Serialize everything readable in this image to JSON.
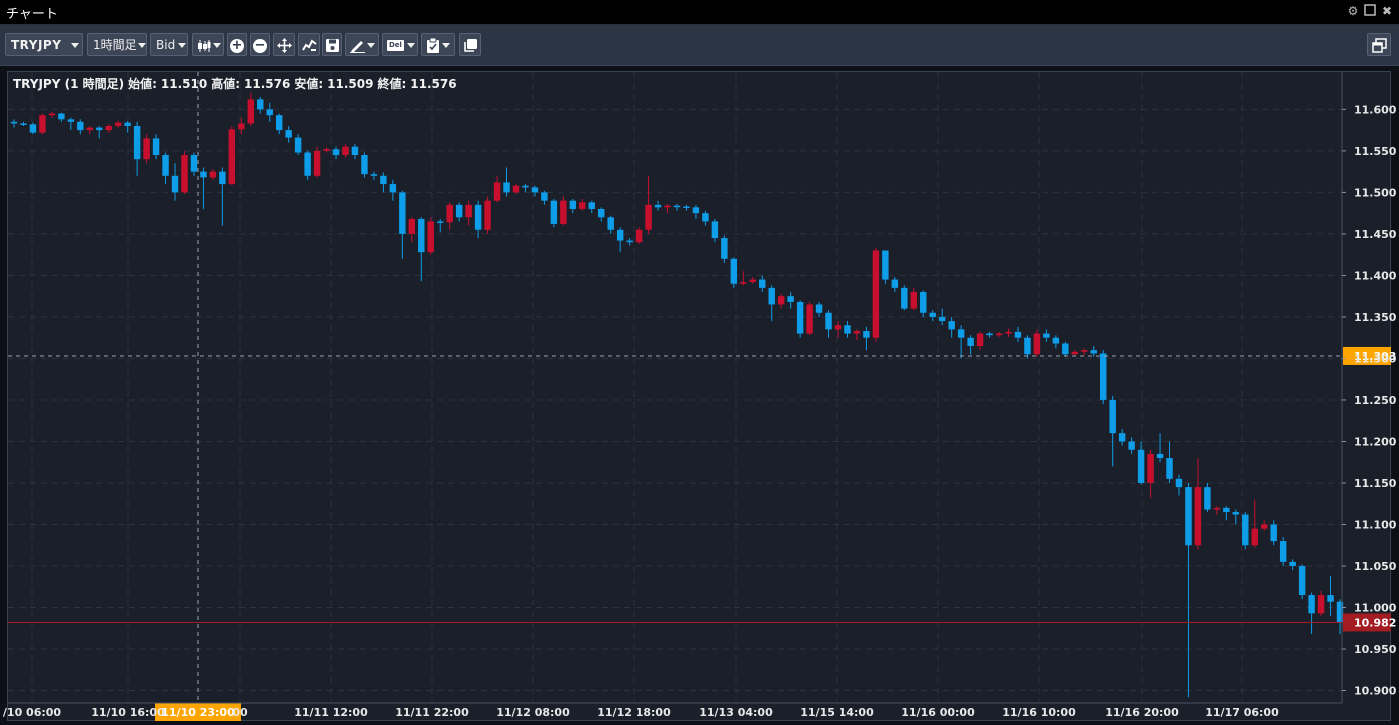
{
  "window": {
    "title": "チャート",
    "icons": [
      "gear-icon",
      "maximize-icon",
      "close-icon"
    ]
  },
  "toolbar": {
    "symbol": "TRYJPY",
    "timeframe": "1時間足",
    "price_type": "Bid",
    "icons": [
      "candlestick-icon",
      "zoom-in-icon",
      "zoom-out-icon",
      "move-icon",
      "indicator-icon",
      "save-icon",
      "draw-icon",
      "delete-icon",
      "clipboard-icon",
      "copy-icon",
      "new-window-icon"
    ],
    "delete_label": "Del"
  },
  "ohlc": {
    "symbol_label": "TRYJPY (1 時間足)",
    "open_label": "始値:",
    "open": "11.510",
    "high_label": "高値:",
    "high": "11.576",
    "low_label": "安値:",
    "low": "11.509",
    "close_label": "終値:",
    "close": "11.576"
  },
  "colors": {
    "up": "#c8102e",
    "down": "#0e9de8",
    "current_badge": "#a21c22",
    "cursor_badge": "#ffa500",
    "background": "#1a1f29"
  },
  "chart_data": {
    "type": "candlestick",
    "ylim": [
      10.885,
      11.645
    ],
    "y_ticks": [
      "11.600",
      "11.550",
      "11.500",
      "11.450",
      "11.400",
      "11.350",
      "11.300",
      "11.250",
      "11.200",
      "11.150",
      "11.100",
      "11.050",
      "11.000",
      "10.950",
      "10.900"
    ],
    "x_tick_labels": [
      "/10 06:00",
      "11/10 16:00",
      "00",
      "11/11 12:00",
      "11/11 22:00",
      "11/12 08:00",
      "11/12 18:00",
      "11/13 04:00",
      "11/15 14:00",
      "11/16 00:00",
      "11/16 10:00",
      "11/16 20:00",
      "11/17 06:00"
    ],
    "crosshair": {
      "x_label": "11/10 23:00",
      "y_label": "11.303",
      "y": 11.303
    },
    "current_price": {
      "label": "10.982",
      "y": 10.982
    },
    "candles": [
      [
        11.585,
        11.583,
        11.588,
        11.578
      ],
      [
        11.583,
        11.582,
        11.585,
        11.58
      ],
      [
        11.582,
        11.572,
        11.584,
        11.57
      ],
      [
        11.572,
        11.593,
        11.595,
        11.57
      ],
      [
        11.593,
        11.595,
        11.597,
        11.59
      ],
      [
        11.595,
        11.588,
        11.596,
        11.585
      ],
      [
        11.588,
        11.585,
        11.59,
        11.575
      ],
      [
        11.585,
        11.575,
        11.588,
        11.57
      ],
      [
        11.575,
        11.578,
        11.58,
        11.57
      ],
      [
        11.578,
        11.575,
        11.58,
        11.565
      ],
      [
        11.575,
        11.58,
        11.582,
        11.572
      ],
      [
        11.58,
        11.584,
        11.586,
        11.578
      ],
      [
        11.584,
        11.58,
        11.586,
        11.572
      ],
      [
        11.58,
        11.54,
        11.585,
        11.52
      ],
      [
        11.54,
        11.565,
        11.57,
        11.535
      ],
      [
        11.565,
        11.545,
        11.57,
        11.54
      ],
      [
        11.545,
        11.52,
        11.548,
        11.51
      ],
      [
        11.52,
        11.5,
        11.535,
        11.49
      ],
      [
        11.5,
        11.545,
        11.55,
        11.498
      ],
      [
        11.545,
        11.525,
        11.548,
        11.52
      ],
      [
        11.525,
        11.518,
        11.53,
        11.48
      ],
      [
        11.518,
        11.525,
        11.528,
        11.515
      ],
      [
        11.525,
        11.51,
        11.53,
        11.46
      ],
      [
        11.51,
        11.576,
        11.58,
        11.509
      ],
      [
        11.576,
        11.583,
        11.59,
        11.57
      ],
      [
        11.583,
        11.612,
        11.62,
        11.58
      ],
      [
        11.612,
        11.6,
        11.615,
        11.595
      ],
      [
        11.6,
        11.593,
        11.608,
        11.585
      ],
      [
        11.593,
        11.575,
        11.595,
        11.57
      ],
      [
        11.575,
        11.566,
        11.58,
        11.56
      ],
      [
        11.566,
        11.548,
        11.57,
        11.545
      ],
      [
        11.548,
        11.52,
        11.55,
        11.515
      ],
      [
        11.52,
        11.55,
        11.555,
        11.518
      ],
      [
        11.55,
        11.552,
        11.554,
        11.548
      ],
      [
        11.552,
        11.545,
        11.555,
        11.54
      ],
      [
        11.545,
        11.555,
        11.558,
        11.542
      ],
      [
        11.555,
        11.545,
        11.558,
        11.54
      ],
      [
        11.545,
        11.522,
        11.548,
        11.518
      ],
      [
        11.522,
        11.52,
        11.525,
        11.515
      ],
      [
        11.52,
        11.51,
        11.524,
        11.5
      ],
      [
        11.51,
        11.5,
        11.515,
        11.49
      ],
      [
        11.5,
        11.45,
        11.502,
        11.42
      ],
      [
        11.45,
        11.468,
        11.47,
        11.44
      ],
      [
        11.468,
        11.428,
        11.47,
        11.393
      ],
      [
        11.428,
        11.465,
        11.47,
        11.425
      ],
      [
        11.465,
        11.464,
        11.468,
        11.452
      ],
      [
        11.464,
        11.485,
        11.488,
        11.455
      ],
      [
        11.485,
        11.47,
        11.488,
        11.465
      ],
      [
        11.47,
        11.485,
        11.49,
        11.46
      ],
      [
        11.485,
        11.455,
        11.49,
        11.445
      ],
      [
        11.455,
        11.49,
        11.495,
        11.45
      ],
      [
        11.49,
        11.512,
        11.52,
        11.488
      ],
      [
        11.512,
        11.5,
        11.53,
        11.495
      ],
      [
        11.5,
        11.508,
        11.51,
        11.498
      ],
      [
        11.508,
        11.506,
        11.51,
        11.5
      ],
      [
        11.506,
        11.5,
        11.508,
        11.495
      ],
      [
        11.5,
        11.49,
        11.502,
        11.485
      ],
      [
        11.49,
        11.462,
        11.492,
        11.458
      ],
      [
        11.462,
        11.49,
        11.495,
        11.46
      ],
      [
        11.49,
        11.48,
        11.492,
        11.475
      ],
      [
        11.48,
        11.488,
        11.492,
        11.478
      ],
      [
        11.488,
        11.48,
        11.49,
        11.475
      ],
      [
        11.48,
        11.47,
        11.482,
        11.465
      ],
      [
        11.47,
        11.455,
        11.472,
        11.45
      ],
      [
        11.455,
        11.442,
        11.458,
        11.428
      ],
      [
        11.442,
        11.44,
        11.445,
        11.436
      ],
      [
        11.44,
        11.455,
        11.458,
        11.438
      ],
      [
        11.455,
        11.485,
        11.52,
        11.45
      ],
      [
        11.485,
        11.482,
        11.49,
        11.478
      ],
      [
        11.482,
        11.484,
        11.486,
        11.475
      ],
      [
        11.484,
        11.483,
        11.486,
        11.478
      ],
      [
        11.483,
        11.482,
        11.485,
        11.478
      ],
      [
        11.482,
        11.475,
        11.485,
        11.468
      ],
      [
        11.475,
        11.465,
        11.478,
        11.46
      ],
      [
        11.465,
        11.445,
        11.468,
        11.44
      ],
      [
        11.445,
        11.42,
        11.448,
        11.415
      ],
      [
        11.42,
        11.39,
        11.422,
        11.385
      ],
      [
        11.39,
        11.392,
        11.405,
        11.388
      ],
      [
        11.392,
        11.395,
        11.398,
        11.39
      ],
      [
        11.395,
        11.385,
        11.4,
        11.38
      ],
      [
        11.385,
        11.365,
        11.388,
        11.345
      ],
      [
        11.365,
        11.375,
        11.378,
        11.36
      ],
      [
        11.375,
        11.368,
        11.38,
        11.36
      ],
      [
        11.368,
        11.33,
        11.37,
        11.325
      ],
      [
        11.33,
        11.365,
        11.368,
        11.328
      ],
      [
        11.365,
        11.355,
        11.368,
        11.35
      ],
      [
        11.355,
        11.335,
        11.358,
        11.325
      ],
      [
        11.335,
        11.34,
        11.345,
        11.325
      ],
      [
        11.34,
        11.33,
        11.345,
        11.325
      ],
      [
        11.33,
        11.333,
        11.335,
        11.322
      ],
      [
        11.333,
        11.325,
        11.338,
        11.31
      ],
      [
        11.325,
        11.43,
        11.433,
        11.32
      ],
      [
        11.43,
        11.395,
        11.43,
        11.39
      ],
      [
        11.395,
        11.385,
        11.398,
        11.38
      ],
      [
        11.385,
        11.36,
        11.388,
        11.358
      ],
      [
        11.36,
        11.38,
        11.385,
        11.358
      ],
      [
        11.38,
        11.355,
        11.382,
        11.35
      ],
      [
        11.355,
        11.35,
        11.358,
        11.345
      ],
      [
        11.35,
        11.345,
        11.36,
        11.34
      ],
      [
        11.345,
        11.335,
        11.35,
        11.325
      ],
      [
        11.335,
        11.325,
        11.34,
        11.3
      ],
      [
        11.325,
        11.315,
        11.328,
        11.305
      ],
      [
        11.315,
        11.33,
        11.332,
        11.31
      ],
      [
        11.33,
        11.328,
        11.332,
        11.325
      ],
      [
        11.328,
        11.33,
        11.332,
        11.326
      ],
      [
        11.33,
        11.332,
        11.336,
        11.326
      ],
      [
        11.332,
        11.325,
        11.338,
        11.32
      ],
      [
        11.325,
        11.305,
        11.328,
        11.3
      ],
      [
        11.305,
        11.33,
        11.335,
        11.302
      ],
      [
        11.33,
        11.325,
        11.335,
        11.32
      ],
      [
        11.325,
        11.318,
        11.328,
        11.312
      ],
      [
        11.318,
        11.305,
        11.32,
        11.302
      ],
      [
        11.305,
        11.308,
        11.31,
        11.303
      ],
      [
        11.308,
        11.31,
        11.312,
        11.304
      ],
      [
        11.31,
        11.306,
        11.315,
        11.302
      ],
      [
        11.306,
        11.25,
        11.31,
        11.245
      ],
      [
        11.25,
        11.21,
        11.255,
        11.17
      ],
      [
        11.21,
        11.2,
        11.215,
        11.195
      ],
      [
        11.2,
        11.19,
        11.205,
        11.185
      ],
      [
        11.19,
        11.15,
        11.2,
        11.148
      ],
      [
        11.15,
        11.185,
        11.19,
        11.132
      ],
      [
        11.185,
        11.18,
        11.21,
        11.175
      ],
      [
        11.18,
        11.155,
        11.2,
        11.15
      ],
      [
        11.155,
        11.145,
        11.16,
        11.135
      ],
      [
        11.145,
        11.075,
        11.15,
        10.892
      ],
      [
        11.075,
        11.145,
        11.18,
        11.07
      ],
      [
        11.145,
        11.118,
        11.15,
        11.115
      ],
      [
        11.118,
        11.12,
        11.122,
        11.112
      ],
      [
        11.12,
        11.115,
        11.122,
        11.105
      ],
      [
        11.115,
        11.112,
        11.118,
        11.1
      ],
      [
        11.112,
        11.075,
        11.115,
        11.07
      ],
      [
        11.075,
        11.095,
        11.13,
        11.072
      ],
      [
        11.095,
        11.1,
        11.105,
        11.092
      ],
      [
        11.1,
        11.08,
        11.105,
        11.075
      ],
      [
        11.08,
        11.055,
        11.085,
        11.05
      ],
      [
        11.055,
        11.05,
        11.058,
        11.045
      ],
      [
        11.05,
        11.015,
        11.052,
        11.01
      ],
      [
        11.015,
        10.993,
        11.018,
        10.968
      ],
      [
        10.993,
        11.015,
        11.02,
        10.99
      ],
      [
        11.015,
        11.007,
        11.038,
        10.99
      ],
      [
        11.007,
        10.982,
        11.01,
        10.968
      ]
    ]
  }
}
